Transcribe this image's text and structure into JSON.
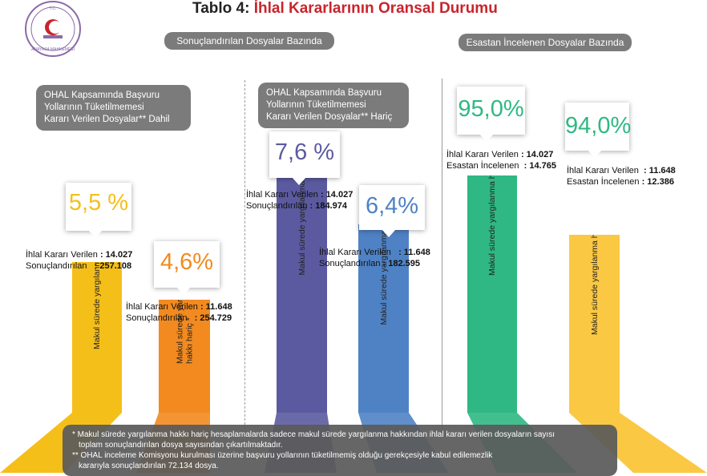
{
  "title": {
    "prefix": "Tablo 4:",
    "main": "İhlal Kararlarının Oransal Durumu"
  },
  "logo": {
    "text": "ANAYASA MAHKEMESİ",
    "top_text": "T.C."
  },
  "sections": {
    "left_header": "Sonuçlandırılan Dosyalar Bazında",
    "right_header": "Esastan İncelenen Dosyalar Bazında",
    "group1_label": [
      "OHAL Kapsamında Başvuru",
      "Yollarının Tüketilmemesi",
      "Kararı Verilen Dosyalar** Dahil"
    ],
    "group2_label": [
      "OHAL Kapsamında Başvuru",
      "Yollarının Tüketilmemesi",
      "Kararı Verilen Dosyalar** Hariç"
    ]
  },
  "colors": {
    "yellow": "#f5bf1a",
    "orange": "#f28a1f",
    "purple": "#5b5aa0",
    "blue": "#4f82c4",
    "green": "#2fb883",
    "gold": "#fbc843",
    "grey": "#7b7b7b"
  },
  "chart_data": {
    "type": "bar",
    "unit": "%",
    "categories": [
      "dahil-1",
      "haric-1",
      "dahil-2",
      "haric-2",
      "dahil-3",
      "haric-3"
    ],
    "values": [
      5.5,
      4.6,
      7.6,
      6.4,
      95.0,
      94.0
    ],
    "labels": [
      "5,5 %",
      "4,6%",
      "7,6 %",
      "6,4%",
      "95,0%",
      "94,0%"
    ],
    "bar_text": [
      "Makul sürede yargılanma hakkı dahil *",
      "Makul sürede yargılanma hakkı hariç *",
      "Makul sürede yargılanma hakkı  dahil *",
      "Makul sürede yargılanma hakkı hariç *",
      "Makul sürede yargılanma hakkı  dahil *",
      "Makul sürede yargılanma hakkı hariç *"
    ],
    "stats": [
      [
        {
          "label": "İhlal Kararı Verilen",
          "value": ": 14.027"
        },
        {
          "label": "Sonuçlandırılan",
          "value": ": 257.108"
        }
      ],
      [
        {
          "label": "İhlal Kararı Verilen",
          "value": ": 11.648"
        },
        {
          "label": "Sonuçlandırılan",
          "value": ": 254.729"
        }
      ],
      [
        {
          "label": "İhlal Kararı Verilen",
          "value": ": 14.027"
        },
        {
          "label": "Sonuçlandırılan",
          "value": ": 184.974"
        }
      ],
      [
        {
          "label": "İhlal Kararı Verilen",
          "value": ": 11.648"
        },
        {
          "label": "Sonuçlandırılan",
          "value": ": 182.595"
        }
      ],
      [
        {
          "label": "İhlal Kararı Verilen",
          "value": ": 14.027"
        },
        {
          "label": "Esastan İncelenen",
          "value": ": 14.765"
        }
      ],
      [
        {
          "label": "İhlal Kararı Verilen",
          "value": ": 11.648"
        },
        {
          "label": "Esastan İncelenen",
          "value": ": 12.386"
        }
      ]
    ]
  },
  "notes": [
    "* Makul sürede yargılanma hakkı hariç hesaplamalarda sadece makul sürede yargılanma hakkından ihlal kararı verilen dosyaların sayısı",
    "toplam sonuçlandırılan dosya sayısından çıkartılmaktadır.",
    "** OHAL inceleme Komisyonu kurulması üzerine başvuru yollarının tüketilmemiş olduğu gerekçesiyle kabul edilemezlik",
    "kararıyla sonuçlandırılan 72.134 dosya."
  ]
}
